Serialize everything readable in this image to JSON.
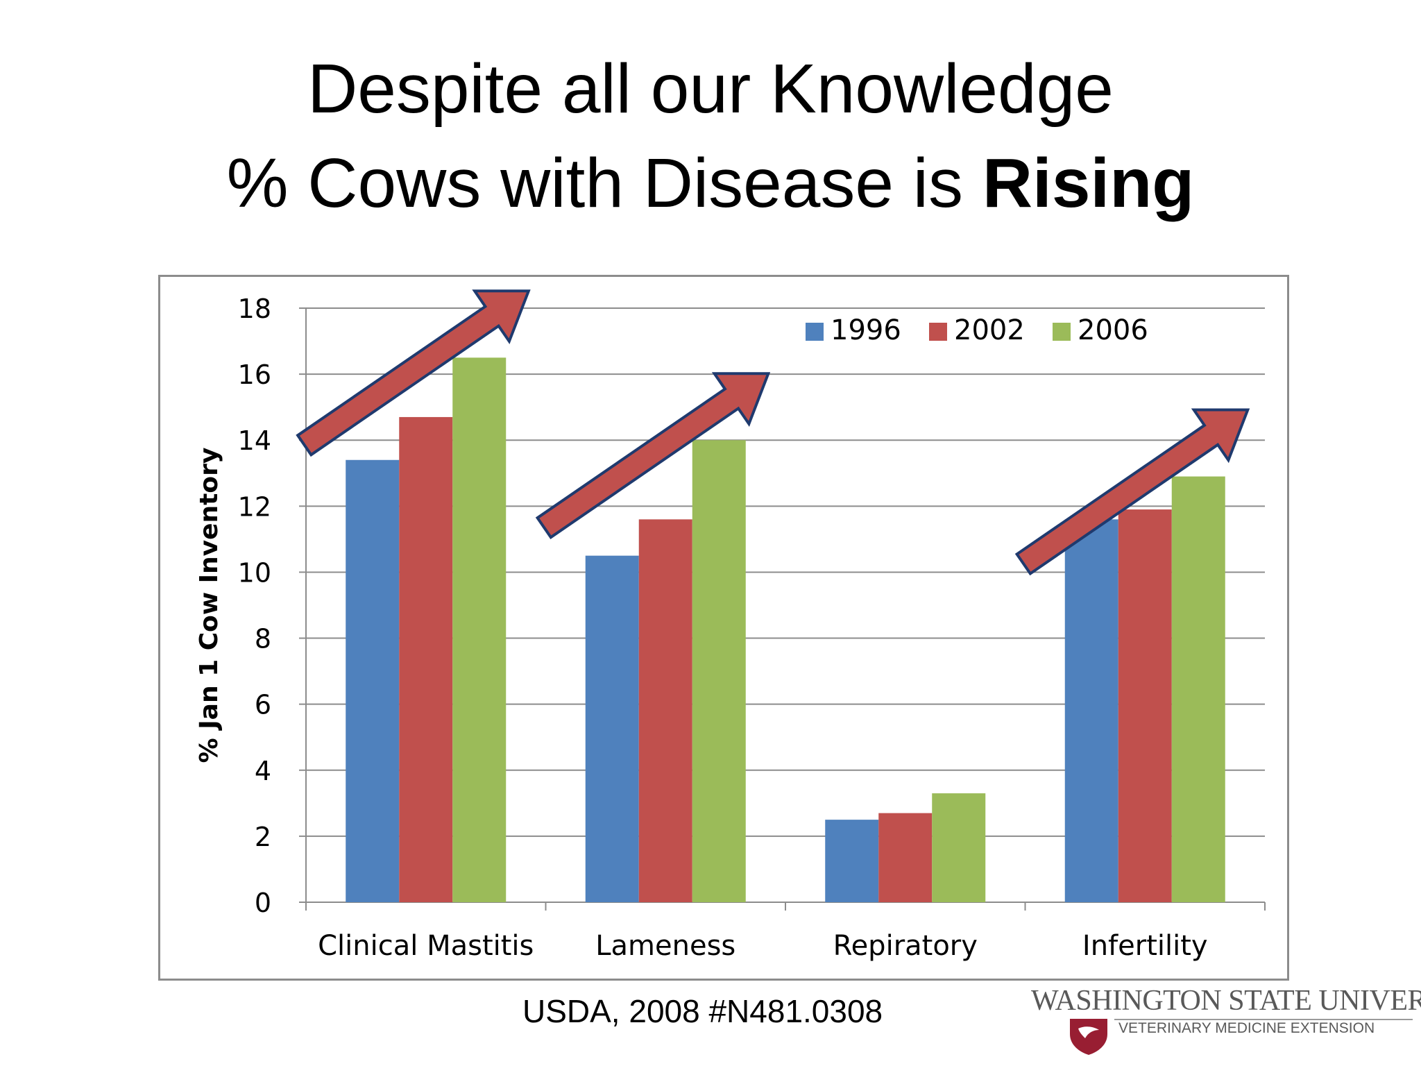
{
  "slide": {
    "title_line1": "Despite all our Knowledge",
    "title_line2_prefix": "% Cows with Disease is ",
    "title_line2_emphasis": "Rising",
    "source": "USDA, 2008 #N481.0308"
  },
  "logo": {
    "name": "WASHINGTON STATE UNIVERSITY",
    "subtitle": "VETERINARY MEDICINE EXTENSION"
  },
  "colors": {
    "series": [
      "#4f81bd",
      "#c0504d",
      "#9bbb59"
    ],
    "arrow_fill": "#c0504d",
    "arrow_stroke": "#1f3a6e",
    "gridline": "#8c8c8c",
    "logo_crimson": "#981e32"
  },
  "chart_data": {
    "type": "bar",
    "categories": [
      "Clinical Mastitis",
      "Lameness",
      "Repiratory",
      "Infertility"
    ],
    "series": [
      {
        "name": "1996",
        "values": [
          13.4,
          10.5,
          2.5,
          11.6
        ]
      },
      {
        "name": "2002",
        "values": [
          14.7,
          11.6,
          2.7,
          11.9
        ]
      },
      {
        "name": "2006",
        "values": [
          16.5,
          14.0,
          3.3,
          12.9
        ]
      }
    ],
    "title": "",
    "xlabel": "",
    "ylabel": "% Jan 1 Cow Inventory",
    "ylim": [
      0,
      18
    ],
    "yticks": [
      0,
      2,
      4,
      6,
      8,
      10,
      12,
      14,
      16,
      18
    ],
    "grid": true,
    "legend": "top-right",
    "annotations": [
      {
        "type": "arrow",
        "category": "Clinical Mastitis",
        "meaning": "rising"
      },
      {
        "type": "arrow",
        "category": "Lameness",
        "meaning": "rising"
      },
      {
        "type": "arrow",
        "category": "Infertility",
        "meaning": "rising"
      }
    ]
  }
}
